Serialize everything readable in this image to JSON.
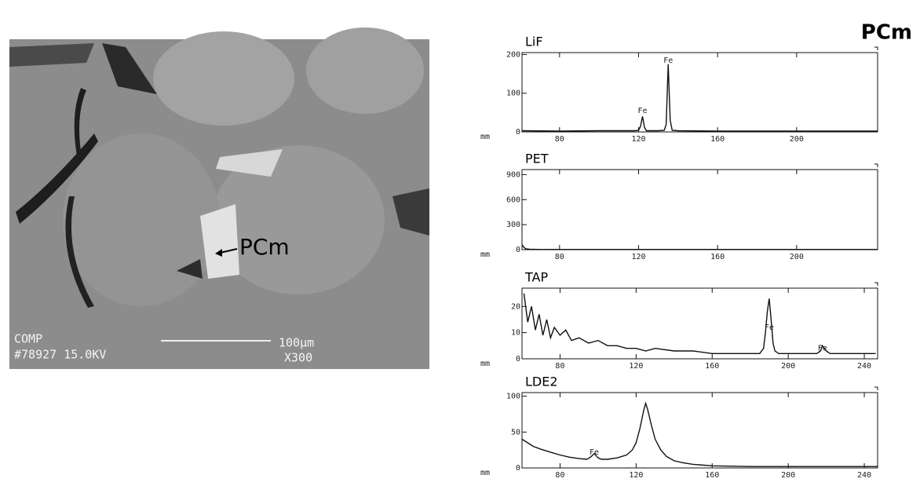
{
  "title": "PCm",
  "image": {
    "label": "PCm",
    "info": [
      "COMP",
      "#78927 15.0KV",
      "100µm",
      "X300"
    ]
  },
  "chart_data": [
    {
      "type": "line",
      "title": "LiF",
      "xlabel": "mm",
      "color": "#111111",
      "x": [
        61,
        80,
        100,
        118,
        120,
        121,
        122,
        123,
        124,
        130,
        133,
        134,
        135,
        136,
        137,
        140,
        160,
        200,
        241
      ],
      "values": [
        3,
        2,
        3,
        3,
        4,
        15,
        40,
        12,
        3,
        3,
        4,
        20,
        175,
        30,
        4,
        3,
        2,
        2,
        2
      ],
      "annotations": [
        {
          "text": "Fe",
          "x": 122,
          "y": 55
        },
        {
          "text": "Fe",
          "x": 135,
          "y": 185
        }
      ],
      "xlim": [
        61,
        241
      ],
      "xticks": [
        80,
        120,
        160,
        200
      ],
      "ylim": [
        0,
        205
      ],
      "yticks": [
        0,
        100,
        200
      ]
    },
    {
      "type": "line",
      "title": "PET",
      "xlabel": "mm",
      "color": "#111111",
      "x": [
        61,
        62,
        63,
        65,
        70,
        100,
        150,
        200,
        241
      ],
      "values": [
        60,
        25,
        10,
        5,
        3,
        3,
        3,
        3,
        3
      ],
      "annotations": [],
      "xlim": [
        61,
        241
      ],
      "xticks": [
        80,
        120,
        160,
        200
      ],
      "ylim": [
        0,
        960
      ],
      "yticks": [
        0,
        300,
        600,
        900
      ]
    },
    {
      "type": "line",
      "title": "TAP",
      "xlabel": "mm",
      "color": "#111111",
      "x": [
        61,
        63,
        65,
        67,
        69,
        71,
        73,
        75,
        77,
        80,
        83,
        86,
        90,
        95,
        100,
        105,
        110,
        115,
        120,
        125,
        130,
        140,
        150,
        160,
        170,
        180,
        185,
        187,
        188,
        189,
        190,
        191,
        192,
        193,
        195,
        200,
        210,
        215,
        217,
        218,
        219,
        220,
        222,
        225,
        235,
        246
      ],
      "values": [
        25,
        14,
        20,
        11,
        17,
        9,
        15,
        8,
        12,
        9,
        11,
        7,
        8,
        6,
        7,
        5,
        5,
        4,
        4,
        3,
        4,
        3,
        3,
        2,
        2,
        2,
        2,
        4,
        10,
        18,
        23,
        15,
        6,
        3,
        2,
        2,
        2,
        2,
        3,
        5,
        4,
        3,
        2,
        2,
        2,
        2
      ],
      "annotations": [
        {
          "text": "Fe",
          "x": 190,
          "y": 12
        },
        {
          "text": "Fe",
          "x": 218,
          "y": 4
        }
      ],
      "xlim": [
        60,
        247
      ],
      "xticks": [
        80,
        120,
        160,
        200,
        240
      ],
      "ylim": [
        0,
        27
      ],
      "yticks": [
        0,
        10,
        20
      ]
    },
    {
      "type": "line",
      "title": "LDE2",
      "xlabel": "mm",
      "color": "#111111",
      "x": [
        60,
        63,
        66,
        70,
        75,
        80,
        85,
        90,
        94,
        96,
        98,
        100,
        102,
        105,
        110,
        115,
        118,
        120,
        122,
        124,
        125,
        126,
        128,
        130,
        133,
        136,
        140,
        145,
        150,
        160,
        180,
        200,
        220,
        247
      ],
      "values": [
        40,
        35,
        30,
        26,
        22,
        18,
        15,
        13,
        12,
        15,
        20,
        14,
        12,
        12,
        14,
        18,
        25,
        35,
        55,
        80,
        90,
        82,
        60,
        40,
        25,
        16,
        10,
        7,
        5,
        3,
        2,
        2,
        2,
        2
      ],
      "annotations": [
        {
          "text": "Fe",
          "x": 98,
          "y": 22
        }
      ],
      "xlim": [
        60,
        247
      ],
      "xticks": [
        80,
        120,
        160,
        200,
        240
      ],
      "ylim": [
        0,
        105
      ],
      "yticks": [
        0,
        50,
        100
      ]
    }
  ]
}
